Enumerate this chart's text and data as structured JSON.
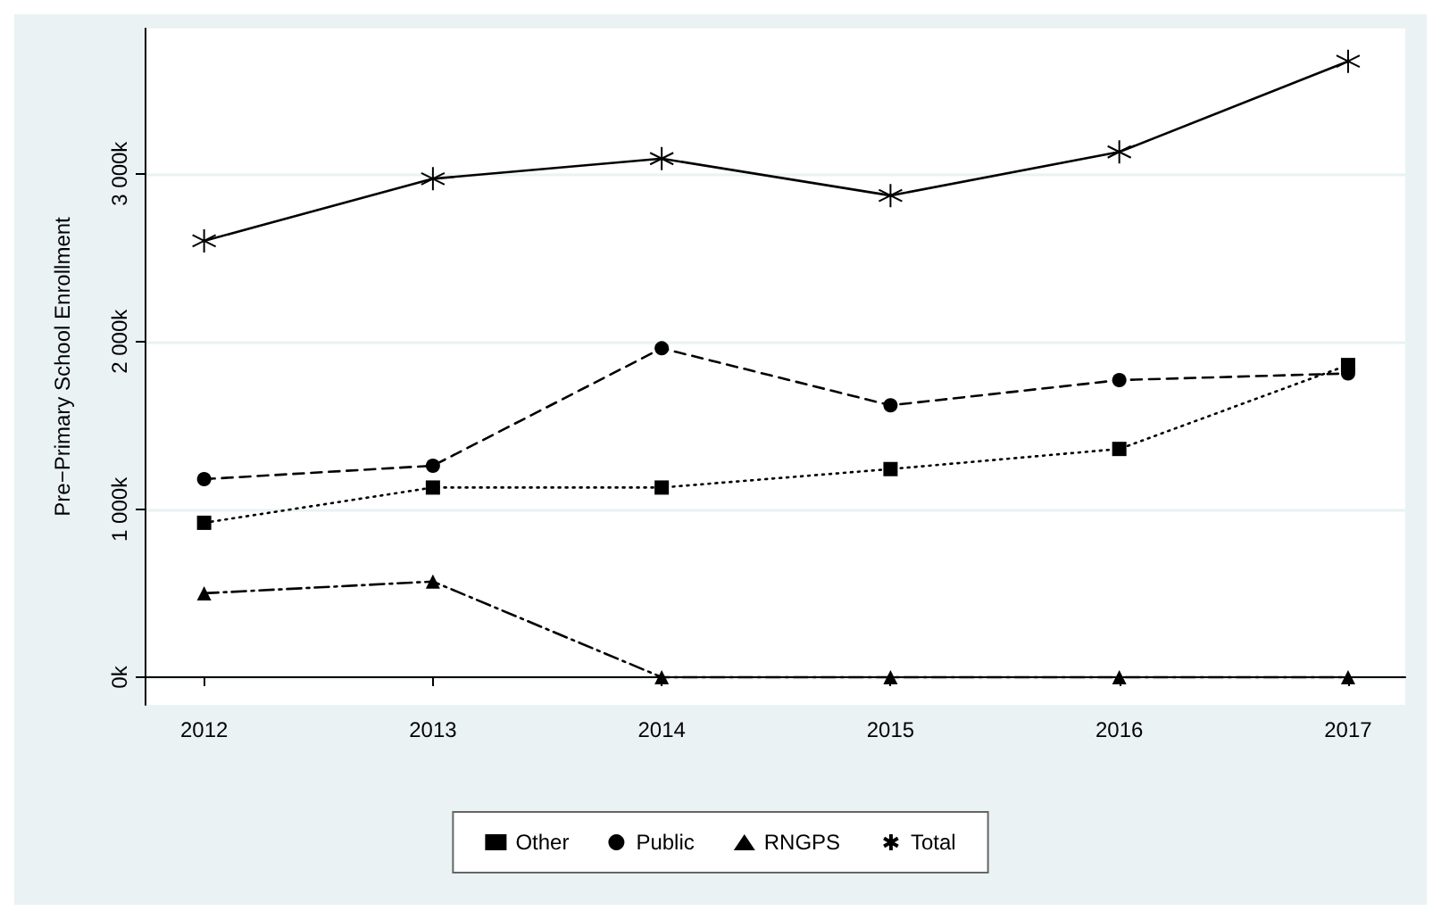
{
  "chart_data": {
    "type": "line",
    "ylabel": "Pre−Primary School Enrollment",
    "x": [
      2012,
      2013,
      2014,
      2015,
      2016,
      2017
    ],
    "xlim": [
      2011.74,
      2017.25
    ],
    "xticks": [
      2012,
      2013,
      2014,
      2015,
      2016,
      2017
    ],
    "ylim": [
      -165,
      3865
    ],
    "yticks": [
      {
        "value": 0,
        "label": "0k"
      },
      {
        "value": 1000,
        "label": "1 000k"
      },
      {
        "value": 2000,
        "label": "2 000k"
      },
      {
        "value": 3000,
        "label": "3 000k"
      }
    ],
    "grid": "y",
    "legend": "bottom",
    "series": [
      {
        "name": "Other",
        "color": "#000000",
        "marker": "square",
        "line_style": "dotted",
        "values": [
          920,
          1130,
          1130,
          1240,
          1360,
          1860
        ]
      },
      {
        "name": "Public",
        "color": "#000000",
        "marker": "circle",
        "line_style": "dashed",
        "values": [
          1180,
          1260,
          1960,
          1620,
          1770,
          1810
        ]
      },
      {
        "name": "RNGPS",
        "color": "#000000",
        "marker": "triangle",
        "line_style": "dashdot",
        "values": [
          500,
          570,
          0,
          0,
          0,
          0
        ]
      },
      {
        "name": "Total",
        "color": "#000000",
        "marker": "cross",
        "line_style": "solid",
        "values": [
          2600,
          2970,
          3090,
          2870,
          3130,
          3670
        ]
      }
    ]
  }
}
